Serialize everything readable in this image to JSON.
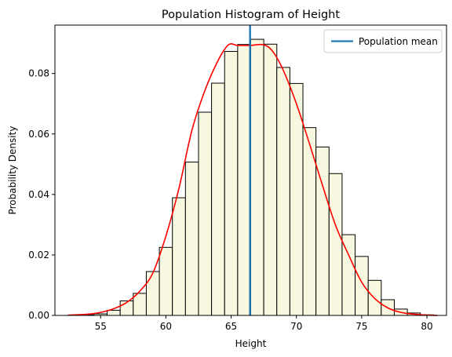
{
  "chart_data": {
    "type": "bar",
    "title": "Population Histogram of Height",
    "xlabel": "Height",
    "ylabel": "Probability Density",
    "xlim": [
      51.5,
      81.5
    ],
    "ylim": [
      0,
      0.096
    ],
    "x_ticks": [
      55,
      60,
      65,
      70,
      75,
      80
    ],
    "y_ticks": [
      0.0,
      0.02,
      0.04,
      0.06,
      0.08
    ],
    "y_tick_labels": [
      "0.00",
      "0.02",
      "0.04",
      "0.06",
      "0.08"
    ],
    "grid": false,
    "legend": {
      "placement": "top-right",
      "entries": [
        "Population mean"
      ]
    },
    "bar_color": "#f8f8e0",
    "bar_edge_color": "#000000",
    "curve_color": "#ff0000",
    "mean_line_color": "#1f77b4",
    "bin_width": 1,
    "bins": [
      {
        "x0": 52.5,
        "value": 0.0
      },
      {
        "x0": 53.5,
        "value": 0.0002
      },
      {
        "x0": 54.5,
        "value": 0.0005
      },
      {
        "x0": 55.5,
        "value": 0.0017
      },
      {
        "x0": 56.5,
        "value": 0.0048
      },
      {
        "x0": 57.5,
        "value": 0.0073
      },
      {
        "x0": 58.5,
        "value": 0.0145
      },
      {
        "x0": 59.5,
        "value": 0.0225
      },
      {
        "x0": 60.5,
        "value": 0.0389
      },
      {
        "x0": 61.5,
        "value": 0.0507
      },
      {
        "x0": 62.5,
        "value": 0.0672
      },
      {
        "x0": 63.5,
        "value": 0.0768
      },
      {
        "x0": 64.5,
        "value": 0.0873
      },
      {
        "x0": 65.5,
        "value": 0.0896
      },
      {
        "x0": 66.5,
        "value": 0.0913
      },
      {
        "x0": 67.5,
        "value": 0.0897
      },
      {
        "x0": 68.5,
        "value": 0.082
      },
      {
        "x0": 69.5,
        "value": 0.0767
      },
      {
        "x0": 70.5,
        "value": 0.0621
      },
      {
        "x0": 71.5,
        "value": 0.0557
      },
      {
        "x0": 72.5,
        "value": 0.0469
      },
      {
        "x0": 73.5,
        "value": 0.0267
      },
      {
        "x0": 74.5,
        "value": 0.0195
      },
      {
        "x0": 75.5,
        "value": 0.0116
      },
      {
        "x0": 76.5,
        "value": 0.0052
      },
      {
        "x0": 77.5,
        "value": 0.0021
      },
      {
        "x0": 78.5,
        "value": 0.0008
      },
      {
        "x0": 79.5,
        "value": 0.0002
      }
    ],
    "density_curve": {
      "x": [
        52.5,
        54,
        55,
        56,
        57,
        58,
        59,
        60,
        61,
        62,
        63,
        64,
        64.8,
        65.5,
        66.5,
        67.5,
        68.2,
        69,
        70,
        71,
        72,
        73,
        74,
        75,
        76,
        77,
        78,
        79,
        80,
        80.8
      ],
      "y": [
        0.0001,
        0.0004,
        0.001,
        0.0022,
        0.0043,
        0.008,
        0.014,
        0.0262,
        0.042,
        0.0613,
        0.0745,
        0.0843,
        0.0895,
        0.0893,
        0.0893,
        0.0895,
        0.0872,
        0.081,
        0.07,
        0.0568,
        0.043,
        0.0298,
        0.02,
        0.011,
        0.0056,
        0.0025,
        0.001,
        0.0004,
        0.0001,
        0.0
      ]
    },
    "mean": 66.45
  }
}
